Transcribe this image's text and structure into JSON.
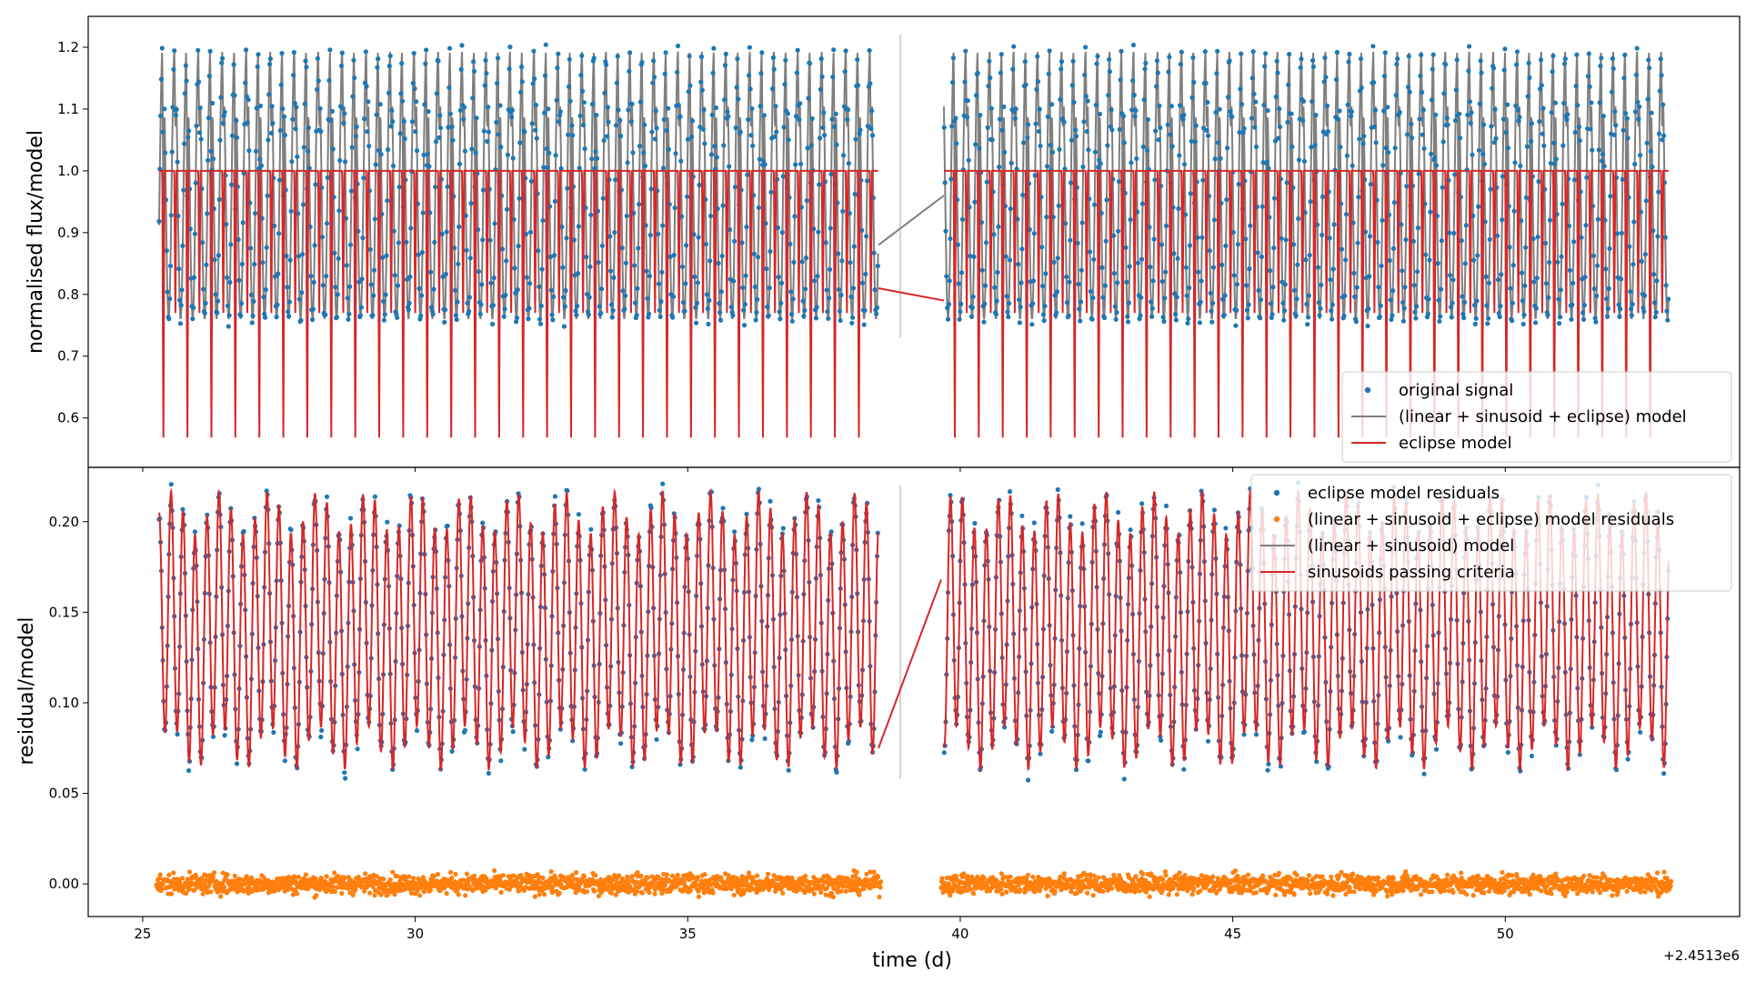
{
  "chart_data": [
    {
      "type": "line",
      "panel": "top",
      "ylabel": "normalised flux/model",
      "x_offset_label": "+2.4513e6",
      "xlim": [
        24.0,
        54.3
      ],
      "ylim": [
        0.52,
        1.25
      ],
      "x_ticks": [
        25,
        30,
        35,
        40,
        45,
        50
      ],
      "y_ticks": [
        0.6,
        0.7,
        0.8,
        0.9,
        1.0,
        1.1,
        1.2
      ],
      "y_tick_labels": [
        "0.6",
        "0.7",
        "0.8",
        "0.9",
        "1.0",
        "1.1",
        "1.2"
      ],
      "data_gap": [
        38.5,
        39.7
      ],
      "vline": {
        "x": 38.9,
        "y_range": [
          0.73,
          1.22
        ],
        "color": "#d3d3d3"
      },
      "legend": {
        "placement": "lower right",
        "entries": [
          {
            "label": "original signal",
            "marker": "dot",
            "color": "#1f77b4"
          },
          {
            "label": "(linear + sinusoid + eclipse) model",
            "marker": "line",
            "color": "#7f7f7f"
          },
          {
            "label": "eclipse model",
            "marker": "line",
            "color": "#d62728"
          }
        ]
      },
      "series": [
        {
          "name": "original signal",
          "kind": "scatter",
          "color": "#1f77b4",
          "range": [
            0.74,
            1.22
          ],
          "x_start": 25.3,
          "x_end": 53.0
        },
        {
          "name": "(linear + sinusoid + eclipse) model",
          "kind": "line",
          "color": "#7f7f7f",
          "range": [
            0.74,
            1.22
          ],
          "gap_points": [
            [
              38.5,
              0.88
            ],
            [
              39.7,
              0.96
            ]
          ]
        },
        {
          "name": "eclipse model",
          "kind": "line",
          "color": "#d62728",
          "baseline": 1.0,
          "eclipse_min": 0.55,
          "secondary_min": 0.76,
          "period": 0.44,
          "gap_points": [
            [
              38.5,
              0.81
            ],
            [
              39.7,
              0.79
            ]
          ]
        }
      ]
    },
    {
      "type": "line",
      "panel": "bottom",
      "ylabel": "residual/model",
      "xlabel": "time (d)",
      "x_offset_label": "+2.4513e6",
      "xlim": [
        24.0,
        54.3
      ],
      "ylim": [
        -0.018,
        0.23
      ],
      "x_ticks": [
        25,
        30,
        35,
        40,
        45,
        50
      ],
      "x_tick_labels": [
        "25",
        "30",
        "35",
        "40",
        "45",
        "50"
      ],
      "y_ticks": [
        0.0,
        0.05,
        0.1,
        0.15,
        0.2
      ],
      "y_tick_labels": [
        "0.00",
        "0.05",
        "0.10",
        "0.15",
        "0.20"
      ],
      "vline": {
        "x": 38.9,
        "y_range": [
          0.058,
          0.22
        ],
        "color": "#d3d3d3"
      },
      "legend": {
        "placement": "upper right",
        "entries": [
          {
            "label": "eclipse model residuals",
            "marker": "dot",
            "color": "#1f77b4"
          },
          {
            "label": "(linear + sinusoid + eclipse) model residuals",
            "marker": "dot",
            "color": "#ff7f0e"
          },
          {
            "label": "(linear + sinusoid) model",
            "marker": "line",
            "color": "#7f7f7f"
          },
          {
            "label": "sinusoids passing criteria",
            "marker": "line",
            "color": "#d62728"
          }
        ]
      },
      "series": [
        {
          "name": "eclipse model residuals",
          "kind": "scatter",
          "color": "#1f77b4",
          "range": [
            0.06,
            0.22
          ]
        },
        {
          "name": "(linear + sinusoid + eclipse) model residuals",
          "kind": "scatter",
          "color": "#ff7f0e",
          "center": 0.0,
          "spread": 0.006
        },
        {
          "name": "(linear + sinusoid) model",
          "kind": "line",
          "color": "#7f7f7f"
        },
        {
          "name": "sinusoids passing criteria",
          "kind": "line",
          "color": "#d62728",
          "range": [
            0.07,
            0.21
          ],
          "gap_points": [
            [
              38.5,
              0.075
            ],
            [
              39.65,
              0.168
            ]
          ]
        }
      ]
    }
  ]
}
